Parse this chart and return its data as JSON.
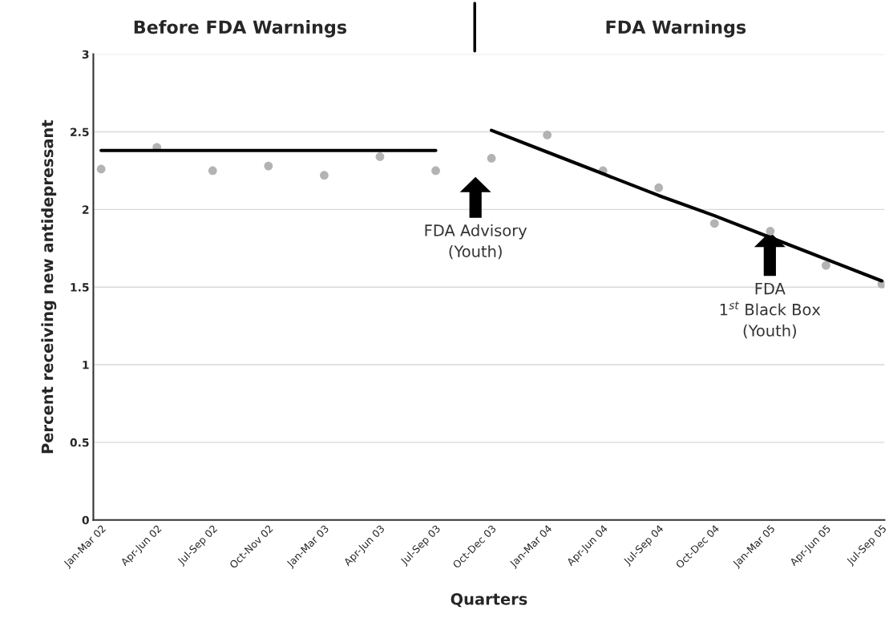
{
  "chart_data": {
    "type": "scatter",
    "categories": [
      "Jan-Mar 02",
      "Apr-Jun 02",
      "Jul-Sep 02",
      "Oct-Nov 02",
      "Jan-Mar 03",
      "Apr-Jun 03",
      "Jul-Sep 03",
      "Oct-Dec 03",
      "Jan-Mar 04",
      "Apr-Jun 04",
      "Jul-Sep 04",
      "Oct-Dec 04",
      "Jan-Mar 05",
      "Apr-Jun 05",
      "Jul-Sep 05"
    ],
    "series": [
      {
        "color": "#b3b3b3",
        "values": [
          2.26,
          2.4,
          2.25,
          2.28,
          2.22,
          2.34,
          2.25,
          2.33,
          2.48,
          2.25,
          2.14,
          1.91,
          1.86,
          1.64,
          1.52
        ]
      },
      {
        "type": "line",
        "color": "#000000",
        "values": [
          2.38,
          2.38,
          2.38,
          2.38,
          2.38,
          2.38,
          2.38,
          null,
          null,
          null,
          null,
          null,
          null,
          null,
          null
        ]
      },
      {
        "type": "line",
        "color": "#000000",
        "values": [
          null,
          null,
          null,
          null,
          null,
          null,
          null,
          2.51,
          2.37,
          2.23,
          2.09,
          1.96,
          1.82,
          1.68,
          1.54
        ]
      }
    ],
    "xlabel": "Quarters",
    "ylabel": "Percent receiving new antidepressant",
    "ylim": [
      0,
      3
    ],
    "yticks": [
      0,
      0.5,
      1,
      1.5,
      2,
      2.5,
      3
    ],
    "grid": "y",
    "legend": false,
    "annotations": [
      "Before FDA Warnings",
      "FDA Warnings",
      "FDA Advisory\n(Youth)",
      "FDA\n1$^{st}$ Black Box\n(Youth)"
    ]
  }
}
